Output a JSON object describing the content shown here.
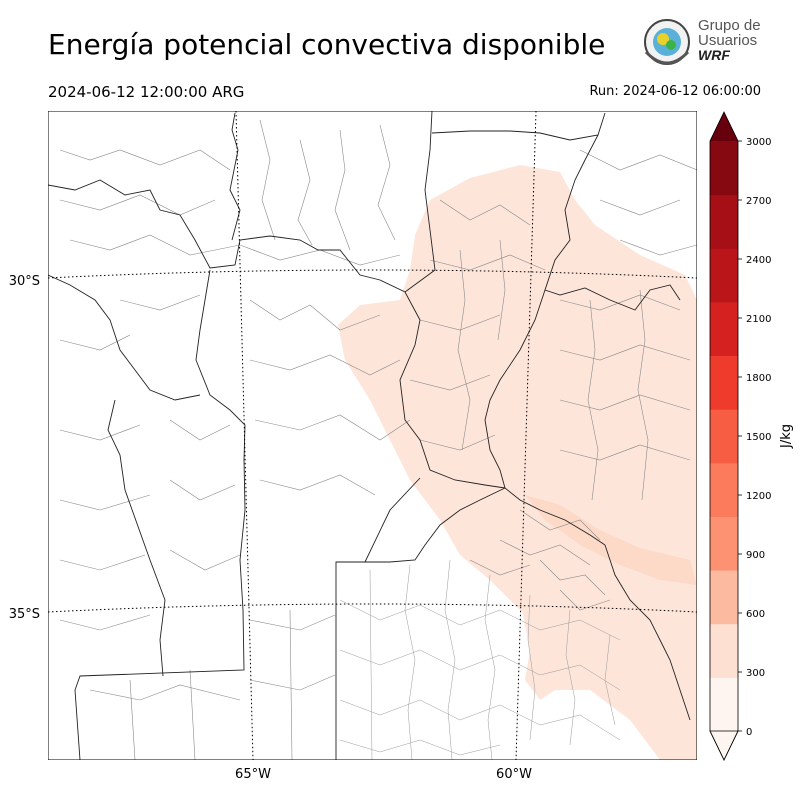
{
  "header": {
    "title": "Energía potencial convectiva disponible",
    "valid_time": "2024-06-12 12:00:00 ARG",
    "run_time": "Run: 2024-06-12 06:00:00"
  },
  "logo": {
    "line1": "Grupo de",
    "line2": "Usuarios",
    "line3": "WRF"
  },
  "map": {
    "lat_labels": [
      "30°S",
      "35°S"
    ],
    "lon_labels": [
      "65°W",
      "60°W"
    ]
  },
  "colorbar": {
    "label": "J/kg",
    "ticks": [
      "0",
      "300",
      "600",
      "900",
      "1200",
      "1500",
      "1800",
      "2100",
      "2400",
      "2700",
      "3000"
    ],
    "colors": [
      "#fff5f0",
      "#fee0d2",
      "#fcbba1",
      "#fc9272",
      "#fb7b5c",
      "#f65d43",
      "#ef3b2c",
      "#d52221",
      "#ba1619",
      "#a50f15",
      "#860811"
    ],
    "over_color": "#67000d"
  }
}
